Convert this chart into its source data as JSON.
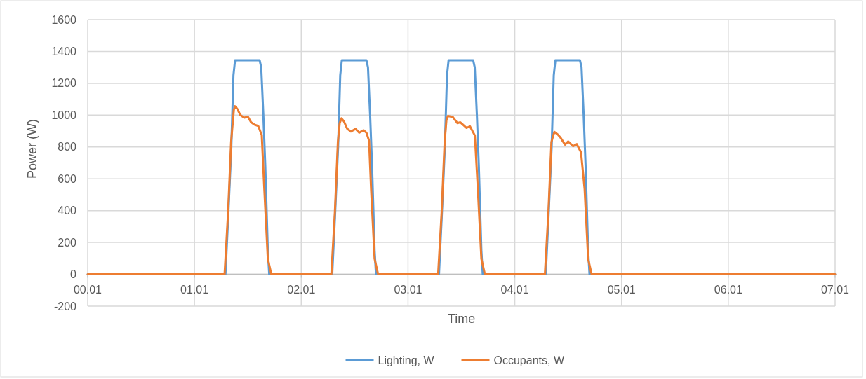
{
  "chart_data": {
    "type": "line",
    "xlabel": "Time",
    "ylabel": "Power (W)",
    "xlim": [
      0.01,
      7.01
    ],
    "xticks": [
      {
        "value": 0.01,
        "label": "00.01"
      },
      {
        "value": 1.01,
        "label": "01.01"
      },
      {
        "value": 2.01,
        "label": "02.01"
      },
      {
        "value": 3.01,
        "label": "03.01"
      },
      {
        "value": 4.01,
        "label": "04.01"
      },
      {
        "value": 5.01,
        "label": "05.01"
      },
      {
        "value": 6.01,
        "label": "06.01"
      },
      {
        "value": 7.01,
        "label": "07.01"
      }
    ],
    "ylim": [
      -200,
      1600
    ],
    "yticks": [
      -200,
      0,
      200,
      400,
      600,
      800,
      1000,
      1200,
      1400,
      1600
    ],
    "grid": true,
    "legend": "bottom",
    "marker": "none",
    "line_style": "solid",
    "series": [
      {
        "name": "Lighting, W",
        "color": "#5b9bd5",
        "x": [
          0.01,
          1.3,
          1.325,
          1.355,
          1.375,
          1.39,
          1.62,
          1.635,
          1.655,
          1.673,
          1.697,
          1.71,
          2.3,
          2.325,
          2.355,
          2.375,
          2.39,
          2.62,
          2.635,
          2.655,
          2.673,
          2.697,
          2.71,
          3.3,
          3.325,
          3.355,
          3.375,
          3.39,
          3.62,
          3.635,
          3.655,
          3.673,
          3.697,
          3.71,
          4.3,
          4.325,
          4.355,
          4.375,
          4.39,
          4.62,
          4.635,
          4.655,
          4.673,
          4.697,
          4.71,
          7.01
        ],
        "values": [
          0,
          0,
          350,
          800,
          1250,
          1345,
          1345,
          1300,
          1000,
          683,
          150,
          0,
          0,
          350,
          800,
          1250,
          1345,
          1345,
          1300,
          1000,
          683,
          150,
          0,
          0,
          350,
          800,
          1250,
          1345,
          1345,
          1300,
          1000,
          683,
          150,
          0,
          0,
          350,
          800,
          1250,
          1345,
          1345,
          1300,
          1000,
          683,
          150,
          0,
          0
        ]
      },
      {
        "name": "Occupants, W",
        "color": "#ed7d31",
        "x": [
          0.01,
          1.292,
          1.325,
          1.353,
          1.379,
          1.39,
          1.41,
          1.44,
          1.476,
          1.51,
          1.54,
          1.576,
          1.607,
          1.64,
          1.664,
          1.697,
          1.73,
          2.292,
          2.325,
          2.353,
          2.37,
          2.387,
          2.41,
          2.44,
          2.475,
          2.519,
          2.552,
          2.594,
          2.62,
          2.645,
          2.664,
          2.697,
          2.73,
          3.292,
          3.325,
          3.353,
          3.37,
          3.384,
          3.43,
          3.472,
          3.5,
          3.559,
          3.59,
          3.636,
          3.664,
          3.697,
          3.73,
          4.292,
          4.325,
          4.353,
          4.365,
          4.381,
          4.41,
          4.436,
          4.48,
          4.51,
          4.556,
          4.59,
          4.63,
          4.664,
          4.697,
          4.73,
          7.01
        ],
        "values": [
          0,
          0,
          391,
          830,
          1034,
          1056,
          1040,
          1000,
          984,
          990,
          955,
          939,
          932,
          875,
          536,
          97,
          0,
          0,
          391,
          830,
          950,
          980,
          960,
          915,
          897,
          914,
          890,
          905,
          890,
          840,
          536,
          97,
          0,
          0,
          391,
          830,
          970,
          995,
          988,
          950,
          955,
          920,
          930,
          872,
          536,
          97,
          0,
          0,
          391,
          830,
          860,
          895,
          880,
          861,
          815,
          835,
          805,
          818,
          767,
          536,
          97,
          0,
          0
        ]
      }
    ]
  }
}
